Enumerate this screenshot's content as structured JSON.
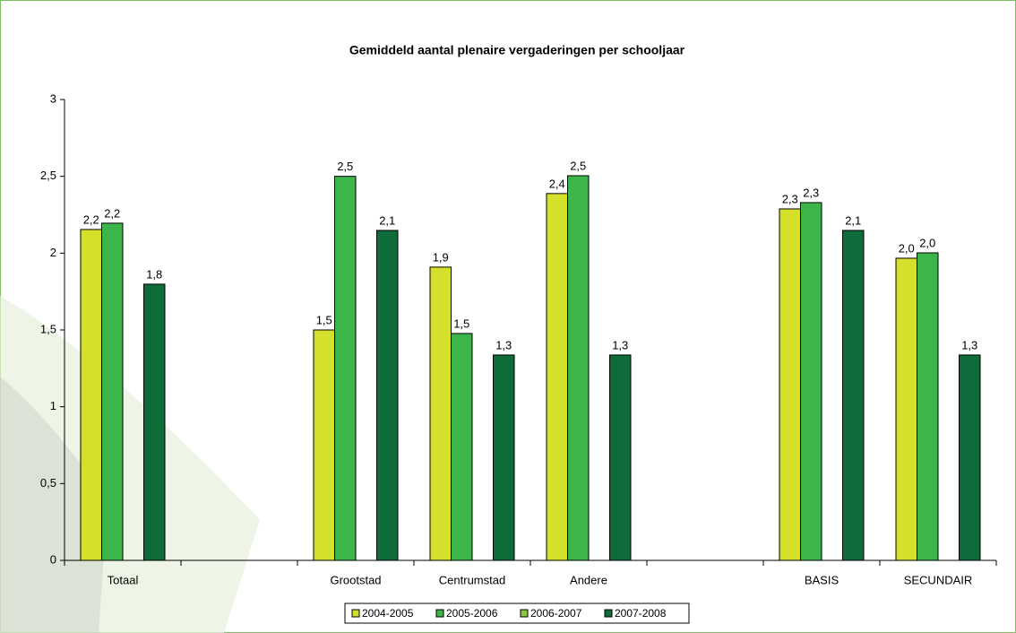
{
  "chart_data": {
    "type": "bar",
    "title": "Gemiddeld aantal plenaire vergaderingen per schooljaar",
    "categories": [
      "Totaal",
      null,
      "Grootstad",
      "Centrumstad",
      "Andere",
      null,
      "BASIS",
      "SECUNDAIR"
    ],
    "series": [
      {
        "name": "2004-2005",
        "color": "#d4e02a",
        "values": [
          2.154,
          null,
          1.5,
          1.909,
          2.388,
          null,
          2.288,
          1.967
        ],
        "value_labels": [
          "2,2",
          null,
          "1,5",
          "1,9",
          "2,4",
          null,
          "2,3",
          "2,0"
        ]
      },
      {
        "name": "2005-2006",
        "color": "#3cb54a",
        "values": [
          2.195,
          null,
          2.5,
          1.477,
          2.504,
          null,
          2.329,
          2.002
        ],
        "value_labels": [
          "2,2",
          null,
          "2,5",
          "1,5",
          "2,5",
          null,
          "2,3",
          "2,0"
        ]
      },
      {
        "name": "2006-2007",
        "color": "#8dc63f",
        "values": [
          null,
          null,
          null,
          null,
          null,
          null,
          null,
          null
        ],
        "value_labels": [
          null,
          null,
          null,
          null,
          null,
          null,
          null,
          null
        ]
      },
      {
        "name": "2007-2008",
        "color": "#0e6b3a",
        "values": [
          1.798,
          null,
          2.148,
          1.337,
          1.337,
          null,
          2.148,
          1.337
        ],
        "value_labels": [
          "1,8",
          null,
          "2,1",
          "1,3",
          "1,3",
          null,
          "2,1",
          "1,3"
        ]
      }
    ],
    "ylim": [
      0,
      3
    ],
    "yticks": [
      0,
      {
        "value": 0.5,
        "label": "0,5"
      },
      1,
      {
        "value": 1.5,
        "label": "1,5"
      },
      2,
      {
        "value": 2.5,
        "label": "2,5"
      },
      3
    ],
    "legend": "bottom"
  }
}
